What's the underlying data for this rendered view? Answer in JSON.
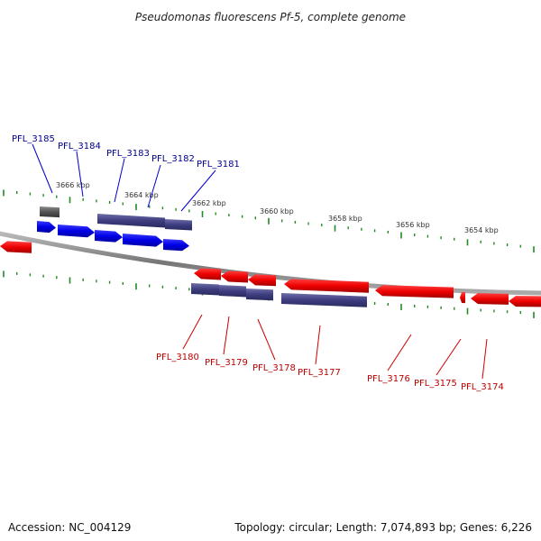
{
  "title": "Pseudomonas fluorescens Pf-5, complete genome",
  "scale_labels": [
    "3666 kbp",
    "3664 kbp",
    "3662 kbp",
    "3660 kbp",
    "3658 kbp",
    "3656 kbp",
    "3654 kbp"
  ],
  "genes_top": [
    "PFL_3185",
    "PFL_3184",
    "PFL_3183",
    "PFL_3182",
    "PFL_3181"
  ],
  "genes_bottom": [
    "PFL_3180",
    "PFL_3179",
    "PFL_3178",
    "PFL_3177",
    "PFL_3176",
    "PFL_3175",
    "PFL_3174"
  ],
  "footer": {
    "accession": "Accession: NC_004129",
    "topology": "Topology: circular; Length: 7,074,893 bp; Genes: 6,226"
  },
  "colors": {
    "forward": "#0000ee",
    "reverse": "#ee0000",
    "rna": "#555566",
    "pseudo_grey": "#666666",
    "tick": "#228b22",
    "backbone": "#888888"
  }
}
